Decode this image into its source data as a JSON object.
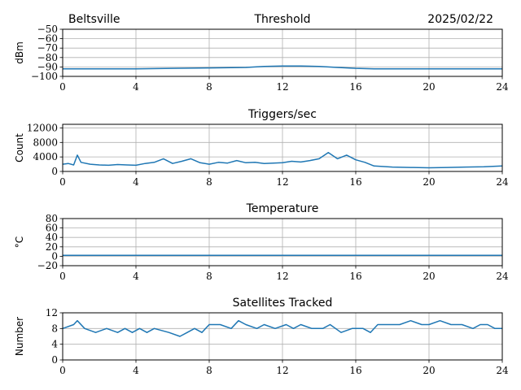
{
  "header": {
    "station": "Beltsville",
    "date": "2025/02/22"
  },
  "chart_data": [
    {
      "type": "line",
      "title": "Threshold",
      "ylabel": "dBm",
      "xlim": [
        0,
        24
      ],
      "ylim": [
        -100,
        -50
      ],
      "xticks": [
        0,
        4,
        8,
        12,
        16,
        20,
        24
      ],
      "yticks": [
        -100,
        -90,
        -80,
        -70,
        -60,
        -50
      ],
      "grid": true,
      "line_color": "#1f77b4",
      "series": [
        {
          "x": [
            0,
            2,
            4,
            6,
            8,
            10,
            11,
            12,
            13,
            14,
            15,
            16,
            17,
            18,
            20,
            22,
            24
          ],
          "y": [
            -92,
            -92,
            -92,
            -91.5,
            -91,
            -90.5,
            -89.5,
            -89,
            -89,
            -89.5,
            -90.5,
            -91.5,
            -92,
            -92,
            -92,
            -92,
            -92
          ]
        }
      ]
    },
    {
      "type": "line",
      "title": "Triggers/sec",
      "ylabel": "Count",
      "xlim": [
        0,
        24
      ],
      "ylim": [
        0,
        13000
      ],
      "xticks": [
        0,
        4,
        8,
        12,
        16,
        20,
        24
      ],
      "yticks": [
        0,
        4000,
        8000,
        12000
      ],
      "grid": true,
      "line_color": "#1f77b4",
      "series": [
        {
          "x": [
            0,
            0.3,
            0.6,
            0.8,
            1,
            1.5,
            2,
            2.5,
            3,
            3.5,
            4,
            4.5,
            5,
            5.5,
            6,
            6.5,
            7,
            7.5,
            8,
            8.5,
            9,
            9.5,
            10,
            10.5,
            11,
            11.5,
            12,
            12.5,
            13,
            13.5,
            14,
            14.5,
            15,
            15.5,
            16,
            16.5,
            17,
            18,
            19,
            20,
            21,
            22,
            23,
            24
          ],
          "y": [
            2000,
            2200,
            1800,
            4500,
            2500,
            2000,
            1800,
            1700,
            1900,
            1800,
            1700,
            2200,
            2500,
            3500,
            2200,
            2800,
            3500,
            2400,
            2000,
            2500,
            2300,
            3000,
            2400,
            2500,
            2200,
            2300,
            2400,
            2800,
            2600,
            3000,
            3500,
            5200,
            3500,
            4500,
            3200,
            2500,
            1500,
            1200,
            1100,
            1000,
            1100,
            1200,
            1300,
            1500
          ]
        }
      ]
    },
    {
      "type": "line",
      "title": "Temperature",
      "ylabel": "°C",
      "xlim": [
        0,
        24
      ],
      "ylim": [
        -20,
        80
      ],
      "xticks": [
        0,
        4,
        8,
        12,
        16,
        20,
        24
      ],
      "yticks": [
        -20,
        0,
        20,
        40,
        60,
        80
      ],
      "grid": true,
      "line_color": "#1f77b4",
      "series": [
        {
          "x": [
            0,
            24
          ],
          "y": [
            2,
            2
          ]
        }
      ]
    },
    {
      "type": "line",
      "title": "Satellites Tracked",
      "ylabel": "Number",
      "xlim": [
        0,
        24
      ],
      "ylim": [
        0,
        12
      ],
      "xticks": [
        0,
        4,
        8,
        12,
        16,
        20,
        24
      ],
      "yticks": [
        0,
        4,
        8,
        12
      ],
      "grid": true,
      "line_color": "#1f77b4",
      "series": [
        {
          "x": [
            0,
            0.6,
            0.8,
            1.2,
            1.8,
            2.4,
            3,
            3.4,
            3.8,
            4.2,
            4.6,
            5,
            5.8,
            6.4,
            6.8,
            7.2,
            7.6,
            8,
            8.6,
            9.2,
            9.6,
            10,
            10.6,
            11,
            11.6,
            12.2,
            12.6,
            13,
            13.6,
            14.2,
            14.6,
            15.2,
            15.8,
            16.4,
            16.8,
            17.2,
            17.8,
            18.4,
            19,
            19.6,
            20,
            20.6,
            21.2,
            21.8,
            22.4,
            22.8,
            23.2,
            23.6,
            24
          ],
          "y": [
            8,
            9,
            10,
            8,
            7,
            8,
            7,
            8,
            7,
            8,
            7,
            8,
            7,
            6,
            7,
            8,
            7,
            9,
            9,
            8,
            10,
            9,
            8,
            9,
            8,
            9,
            8,
            9,
            8,
            8,
            9,
            7,
            8,
            8,
            7,
            9,
            9,
            9,
            10,
            9,
            9,
            10,
            9,
            9,
            8,
            9,
            9,
            8,
            8
          ]
        }
      ]
    }
  ]
}
